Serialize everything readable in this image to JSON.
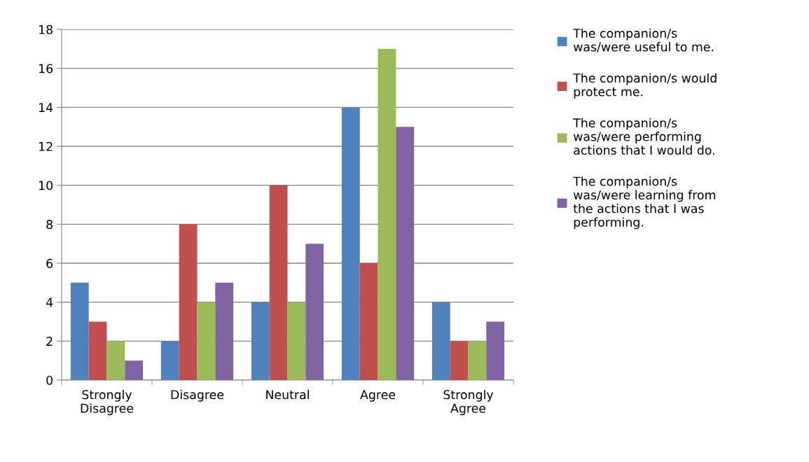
{
  "chart_data": {
    "type": "bar",
    "categories": [
      "Strongly\nDisagree",
      "Disagree",
      "Neutral",
      "Agree",
      "Strongly\nAgree"
    ],
    "series": [
      {
        "name": "The companion/s\nwas/were useful to me.",
        "color": "#4f81bd",
        "values": [
          5,
          2,
          4,
          14,
          4
        ]
      },
      {
        "name": "The companion/s would\nprotect me.",
        "color": "#c0504d",
        "values": [
          3,
          8,
          10,
          6,
          2
        ]
      },
      {
        "name": "The companion/s\nwas/were performing\nactions that I would do.",
        "color": "#9bbb59",
        "values": [
          2,
          4,
          4,
          17,
          2
        ]
      },
      {
        "name": "The companion/s\nwas/were learning from\nthe actions that I was\nperforming.",
        "color": "#8064a2",
        "values": [
          1,
          5,
          7,
          13,
          3
        ]
      }
    ],
    "ylim": [
      0,
      18
    ],
    "yticks": [
      0,
      2,
      4,
      6,
      8,
      10,
      12,
      14,
      16,
      18
    ],
    "grid": "y",
    "legend": "right"
  }
}
